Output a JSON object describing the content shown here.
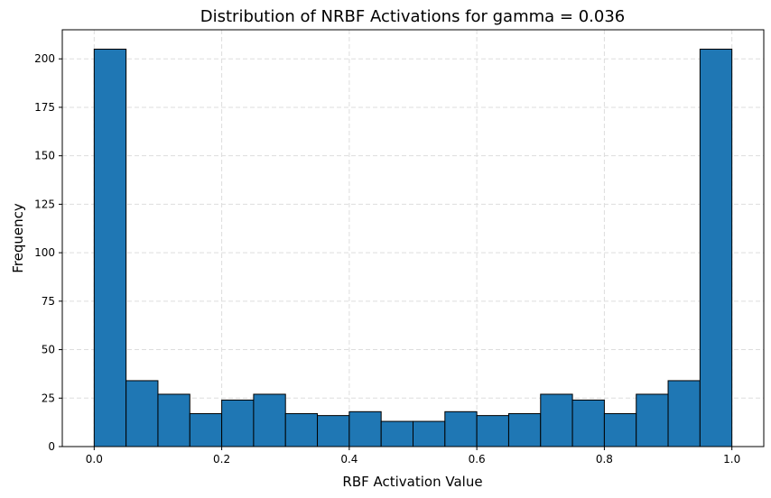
{
  "chart_data": {
    "type": "bar",
    "title": "Distribution of NRBF Activations for gamma = 0.036",
    "xlabel": "RBF Activation Value",
    "ylabel": "Frequency",
    "bin_edges": [
      0.0,
      0.05,
      0.1,
      0.15,
      0.2,
      0.25,
      0.3,
      0.35,
      0.4,
      0.45,
      0.5,
      0.55,
      0.6,
      0.65,
      0.7,
      0.75,
      0.8,
      0.85,
      0.9,
      0.95,
      1.0
    ],
    "values": [
      205,
      34,
      27,
      17,
      24,
      27,
      17,
      16,
      18,
      13,
      13,
      18,
      16,
      17,
      27,
      24,
      17,
      27,
      34,
      205
    ],
    "xlim": [
      -0.05,
      1.05
    ],
    "ylim": [
      0,
      215
    ],
    "xticks": [
      0.0,
      0.2,
      0.4,
      0.6,
      0.8,
      1.0
    ],
    "xtick_labels": [
      "0.0",
      "0.2",
      "0.4",
      "0.6",
      "0.8",
      "1.0"
    ],
    "yticks": [
      0,
      25,
      50,
      75,
      100,
      125,
      150,
      175,
      200
    ],
    "ytick_labels": [
      "0",
      "25",
      "50",
      "75",
      "100",
      "125",
      "150",
      "175",
      "200"
    ],
    "grid": true,
    "colors": {
      "bar_fill": "#1f77b4",
      "bar_edge": "#000000",
      "grid": "#dddddd"
    }
  }
}
